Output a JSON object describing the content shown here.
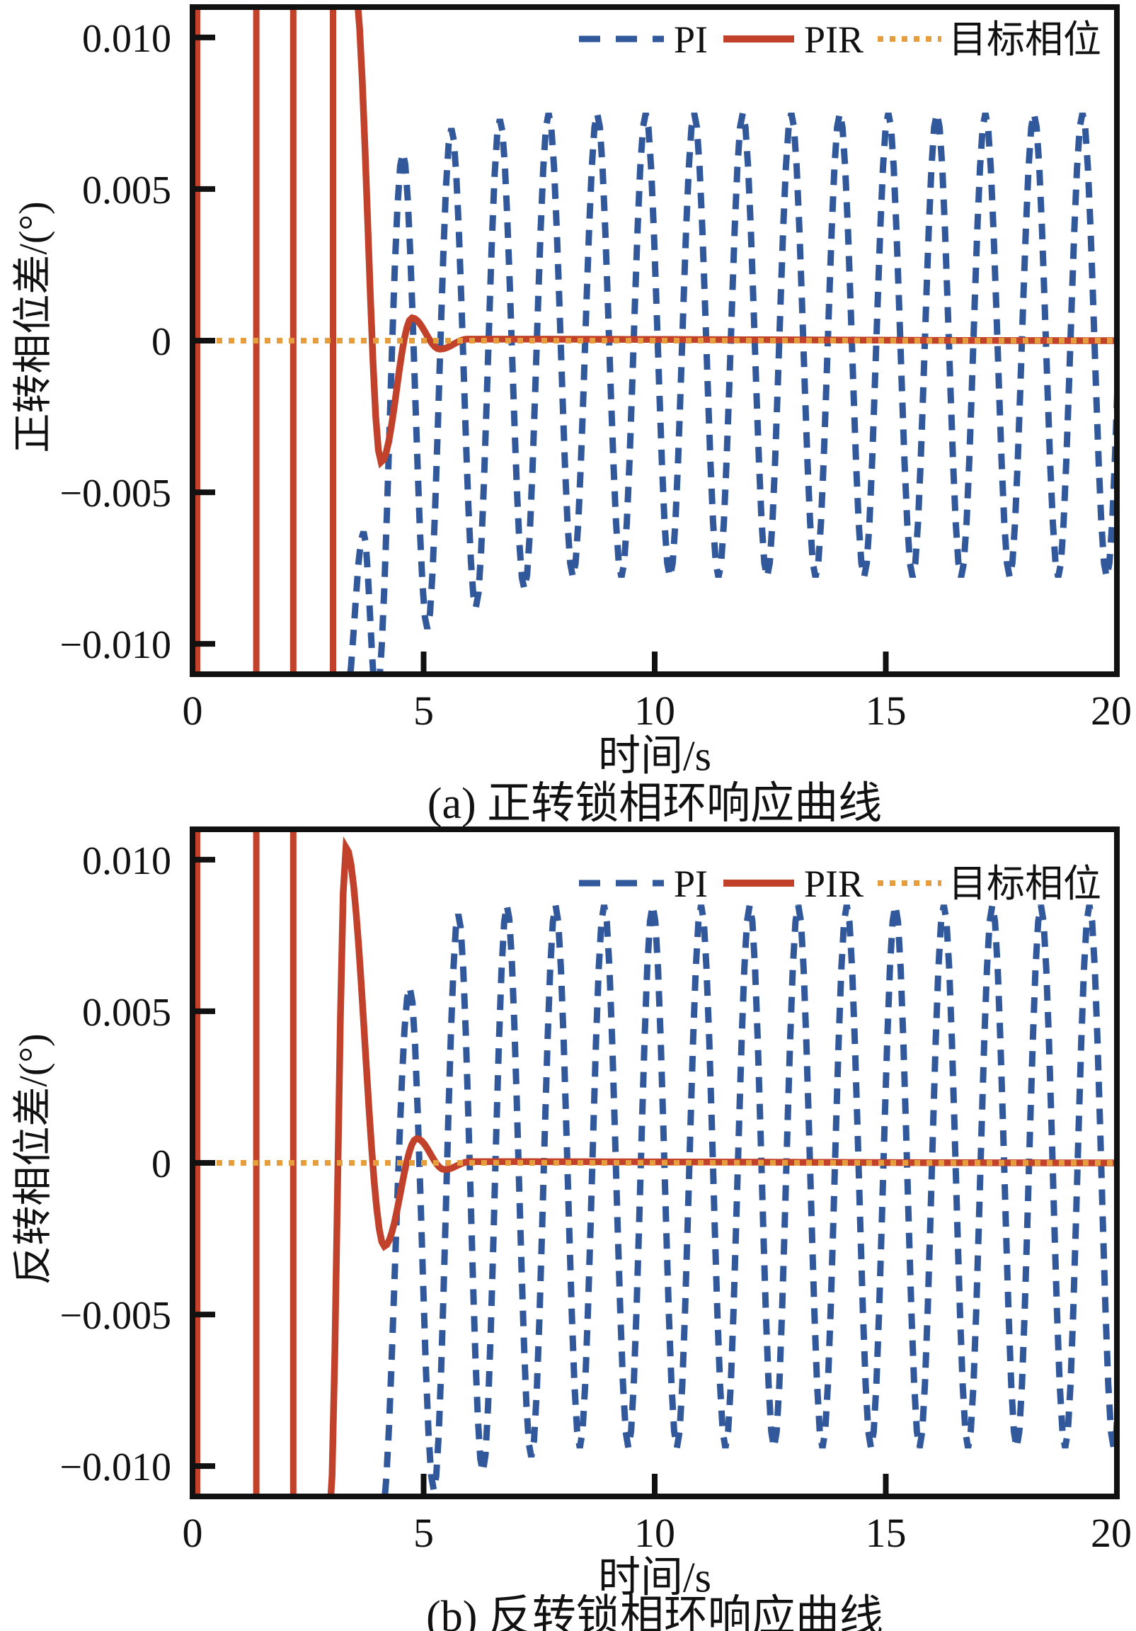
{
  "colors": {
    "pi_blue": "#32589c",
    "pir_red": "#c1412b",
    "target_orange": "#e69d3e",
    "axis_black": "#111111",
    "background": "#ffffff"
  },
  "chart_data": [
    {
      "id": "a",
      "type": "line",
      "caption": "(a) 正转锁相环响应曲线",
      "xlabel": "时间/s",
      "ylabel": "正转相位差/(°)",
      "xlim": [
        0,
        20
      ],
      "ylim": [
        -0.011,
        0.011
      ],
      "xticks": [
        0,
        5,
        10,
        15,
        20
      ],
      "xtick_labels": [
        "0",
        "5",
        "10",
        "15",
        "20"
      ],
      "ytick_values": [
        0.01,
        0.005,
        0,
        -0.005,
        -0.01
      ],
      "ytick_labels": [
        "0.010",
        "0.005",
        "0",
        "−0.005",
        "−0.010"
      ],
      "grid": false,
      "legend_position": "top-right",
      "legend": [
        {
          "label": "PI",
          "style": "dashed",
          "color": "#32589c"
        },
        {
          "label": "PIR",
          "style": "solid",
          "color": "#c1412b"
        },
        {
          "label": "目标相位",
          "style": "dotted",
          "color": "#e69d3e"
        }
      ],
      "series": {
        "pi": {
          "name": "PI",
          "style": "dashed",
          "color": "#32589c",
          "vertical_lines_t": [
            0.05
          ],
          "keypoints": [
            [
              3.32,
              -0.0118
            ],
            [
              3.7,
              -0.0063
            ],
            [
              3.98,
              -0.0118
            ],
            [
              4.55,
              0.0062
            ],
            [
              5.08,
              -0.0095
            ],
            [
              5.6,
              0.007
            ],
            [
              6.13,
              -0.0088
            ],
            [
              6.65,
              0.0073
            ],
            [
              7.18,
              -0.0082
            ]
          ],
          "steady": {
            "first": "peak",
            "period": 1.05,
            "peak": 0.0075,
            "trough": -0.0078,
            "end": 20
          }
        },
        "pir": {
          "name": "PIR",
          "style": "solid",
          "color": "#c1412b",
          "vertical_lines_t": [
            0.1,
            1.38,
            2.18,
            3.04
          ],
          "keypoints": [
            [
              3.5,
              0.0118
            ],
            [
              4.08,
              -0.004
            ],
            [
              4.75,
              0.00075
            ],
            [
              5.35,
              -0.00028
            ],
            [
              5.95,
              5e-05
            ],
            [
              20,
              0
            ]
          ],
          "settle_value": 0,
          "dip_min": -0.004,
          "dip_t": 4.08,
          "overshoot": 0.00075,
          "overshoot_t": 4.75
        },
        "target": {
          "name": "目标相位",
          "style": "dotted",
          "color": "#e69d3e",
          "value": 0
        }
      }
    },
    {
      "id": "b",
      "type": "line",
      "caption": "(b) 反转锁相环响应曲线",
      "xlabel": "时间/s",
      "ylabel": "反转相位差/(°)",
      "xlim": [
        0,
        20
      ],
      "ylim": [
        -0.011,
        0.011
      ],
      "xticks": [
        0,
        5,
        10,
        15,
        20
      ],
      "xtick_labels": [
        "0",
        "5",
        "10",
        "15",
        "20"
      ],
      "ytick_values": [
        0.01,
        0.005,
        0,
        -0.005,
        -0.01
      ],
      "ytick_labels": [
        "0.010",
        "0.005",
        "0",
        "−0.005",
        "−0.010"
      ],
      "grid": false,
      "legend_position": "top-right",
      "legend": [
        {
          "label": "PI",
          "style": "dashed",
          "color": "#32589c"
        },
        {
          "label": "PIR",
          "style": "solid",
          "color": "#c1412b"
        },
        {
          "label": "目标相位",
          "style": "dotted",
          "color": "#e69d3e"
        }
      ],
      "series": {
        "pi": {
          "name": "PI",
          "style": "dashed",
          "color": "#32589c",
          "vertical_lines_t": [
            0.05
          ],
          "keypoints": [
            [
              4.08,
              -0.0118
            ],
            [
              4.7,
              0.0058
            ],
            [
              5.22,
              -0.0108
            ],
            [
              5.75,
              0.0082
            ],
            [
              6.28,
              -0.0102
            ],
            [
              6.8,
              0.0085
            ],
            [
              7.33,
              -0.0097
            ]
          ],
          "steady": {
            "first": "peak",
            "period": 1.05,
            "peak": 0.0085,
            "trough": -0.0094,
            "end": 20
          }
        },
        "pir": {
          "name": "PIR",
          "style": "solid",
          "color": "#c1412b",
          "vertical_lines_t": [
            0.1,
            1.38,
            2.18
          ],
          "keypoints": [
            [
              2.96,
              -0.0118
            ],
            [
              3.32,
              0.0104
            ],
            [
              4.15,
              -0.00275
            ],
            [
              4.85,
              0.0008
            ],
            [
              5.45,
              -0.00022
            ],
            [
              6.0,
              4e-05
            ],
            [
              20,
              0
            ]
          ],
          "settle_value": 0,
          "dip_min": -0.00275,
          "dip_t": 4.15,
          "overshoot": 0.0008,
          "overshoot_t": 4.85
        },
        "target": {
          "name": "目标相位",
          "style": "dotted",
          "color": "#e69d3e",
          "value": 0
        }
      }
    }
  ]
}
